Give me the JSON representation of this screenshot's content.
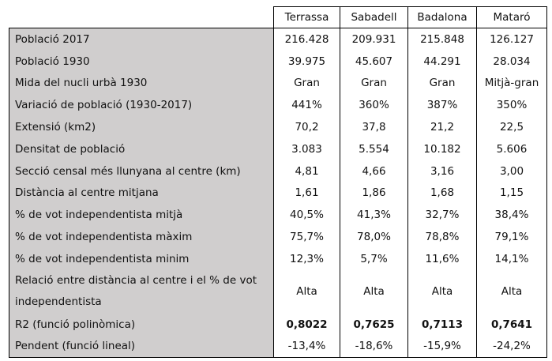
{
  "columns": [
    "Terrassa",
    "Sabadell",
    "Badalona",
    "Mataró"
  ],
  "rows": [
    {
      "label": "Població 2017",
      "values": [
        "216.428",
        "209.931",
        "215.848",
        "126.127"
      ]
    },
    {
      "label": "Població 1930",
      "values": [
        "39.975",
        "45.607",
        "44.291",
        "28.034"
      ]
    },
    {
      "label": "Mida del nucli urbà 1930",
      "values": [
        "Gran",
        "Gran",
        "Gran",
        "Mitjà-gran"
      ]
    },
    {
      "label": "Variació de població (1930-2017)",
      "values": [
        "441%",
        "360%",
        "387%",
        "350%"
      ]
    },
    {
      "label": "Extensió (km2)",
      "values": [
        "70,2",
        "37,8",
        "21,2",
        "22,5"
      ]
    },
    {
      "label": "Densitat de població",
      "values": [
        "3.083",
        "5.554",
        "10.182",
        "5.606"
      ]
    },
    {
      "label": "Secció censal més llunyana al centre (km)",
      "values": [
        "4,81",
        "4,66",
        "3,16",
        "3,00"
      ]
    },
    {
      "label": "Distància al centre mitjana",
      "values": [
        "1,61",
        "1,86",
        "1,68",
        "1,15"
      ]
    },
    {
      "label": "% de vot independentista mitjà",
      "values": [
        "40,5%",
        "41,3%",
        "32,7%",
        "38,4%"
      ]
    },
    {
      "label": "% de vot independentista màxim",
      "values": [
        "75,7%",
        "78,0%",
        "78,8%",
        "79,1%"
      ]
    },
    {
      "label": "% de vot independentista minim",
      "values": [
        "12,3%",
        "5,7%",
        "11,6%",
        "14,1%"
      ]
    },
    {
      "label": "Relació entre distància al centre i el % de vot independentista",
      "values": [
        "Alta",
        "Alta",
        "Alta",
        "Alta"
      ]
    },
    {
      "label": "R2 (funció polinòmica)",
      "values": [
        "0,8022",
        "0,7625",
        "0,7113",
        "0,7641"
      ]
    },
    {
      "label": "Pendent (funció lineal)",
      "values": [
        "-13,4%",
        "-18,6%",
        "-15,9%",
        "-24,2%"
      ]
    }
  ]
}
